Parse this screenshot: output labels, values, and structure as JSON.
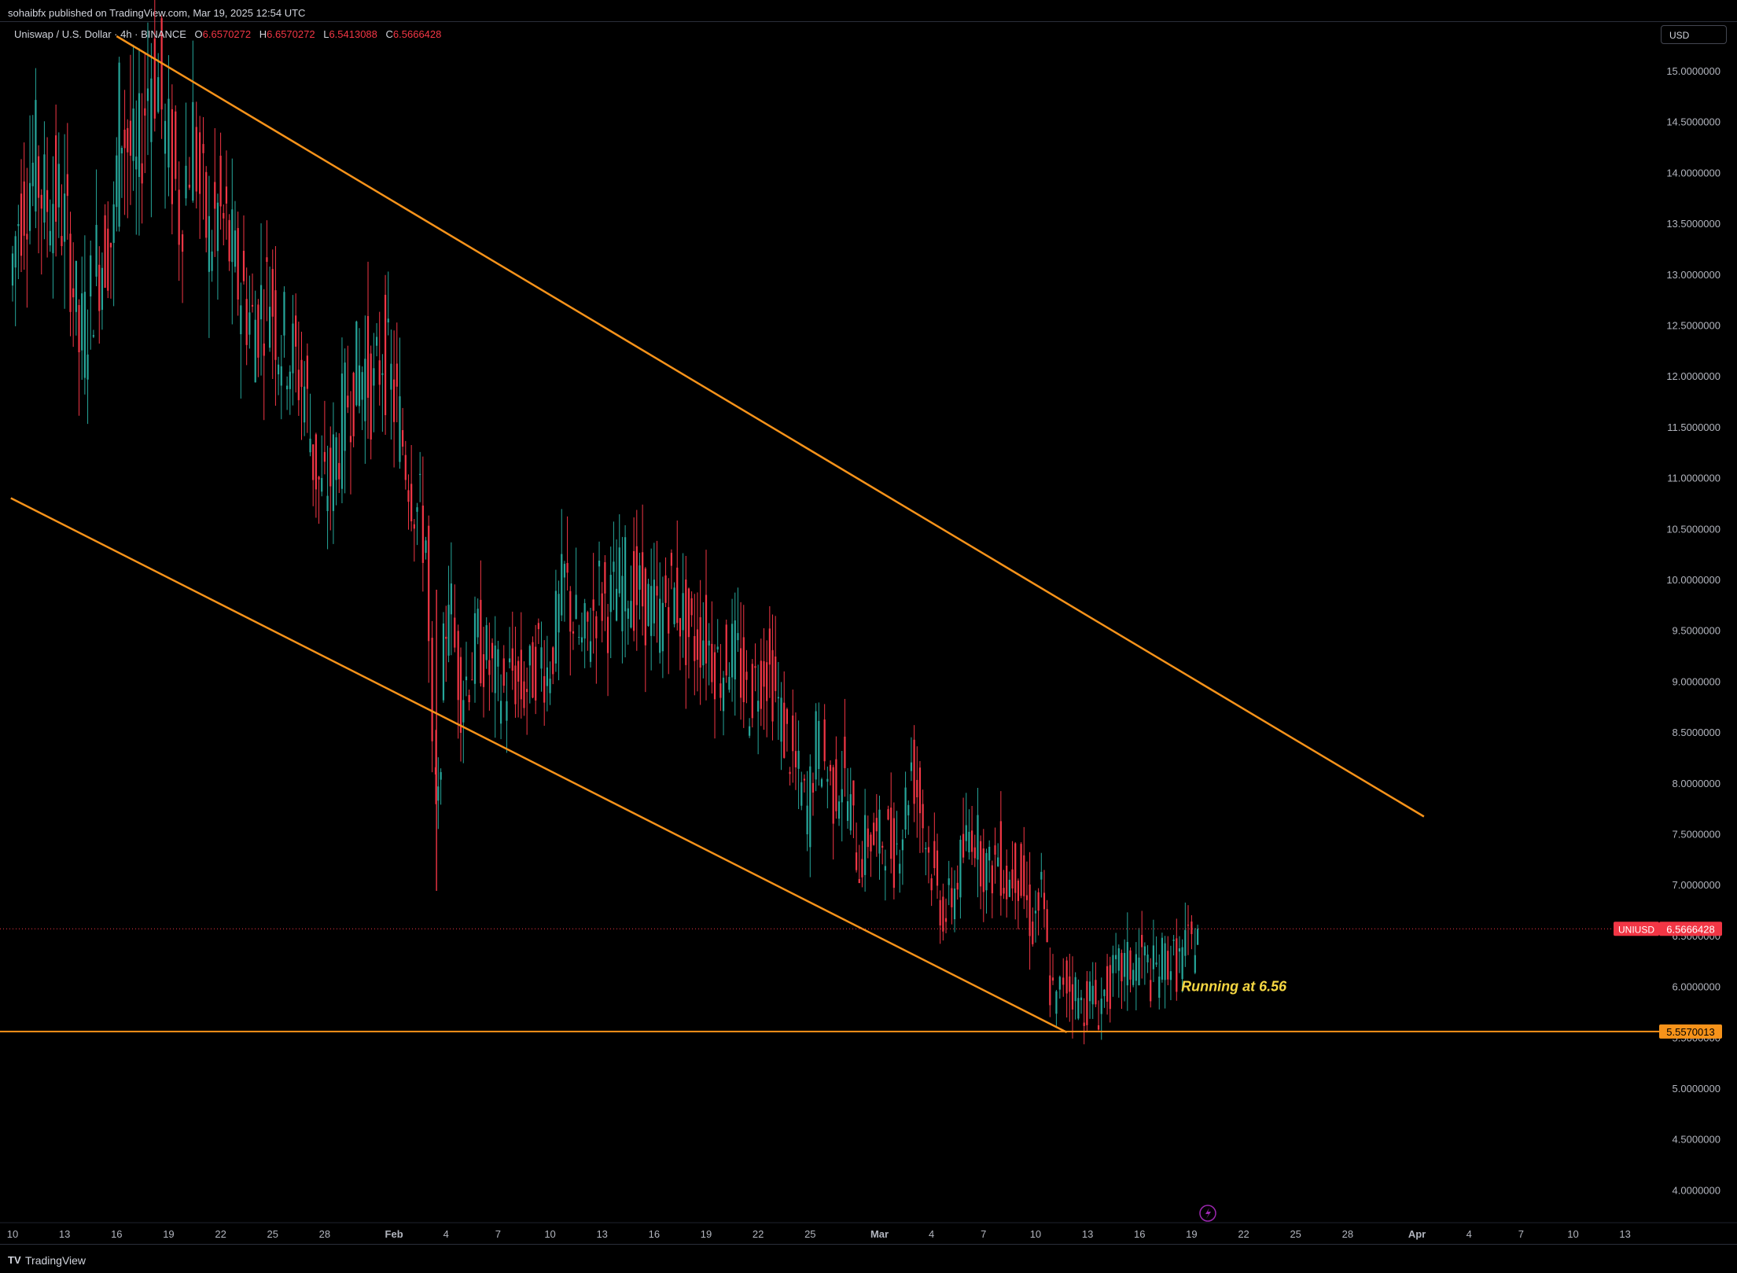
{
  "header": {
    "published": "sohaibfx published on TradingView.com, Mar 19, 2025 12:54 UTC"
  },
  "legend": {
    "symbol": "Uniswap / U.S. Dollar · 4h · BINANCE",
    "o_label": "O",
    "o": "6.6570272",
    "h_label": "H",
    "h": "6.6570272",
    "l_label": "L",
    "l": "6.5413088",
    "c_label": "C",
    "c": "6.5666428"
  },
  "currency_button": "USD",
  "footer": {
    "brand": "TradingView",
    "logo": "TV"
  },
  "colors": {
    "up": "#26a69a",
    "down": "#f23645",
    "trendline": "#f7931a",
    "annotation": "#f5d742",
    "price_label": "#f23645",
    "level_label": "#f7931a"
  },
  "chart_data": {
    "type": "candlestick",
    "interval": "4h",
    "y_scale": "linear",
    "ylim": [
      3.8,
      15.35
    ],
    "y_ticks": [
      "15.0000000",
      "14.5000000",
      "14.0000000",
      "13.5000000",
      "13.0000000",
      "12.5000000",
      "12.0000000",
      "11.5000000",
      "11.0000000",
      "10.5000000",
      "10.0000000",
      "9.5000000",
      "9.0000000",
      "8.5000000",
      "8.0000000",
      "7.5000000",
      "7.0000000",
      "6.5000000",
      "6.0000000",
      "5.5000000",
      "5.0000000",
      "4.5000000",
      "4.0000000"
    ],
    "y_tick_values": [
      15,
      14.5,
      14,
      13.5,
      13,
      12.5,
      12,
      11.5,
      11,
      10.5,
      10,
      9.5,
      9,
      8.5,
      8,
      7.5,
      7,
      6.5,
      6,
      5.5,
      5,
      4.5,
      4
    ],
    "x_range_days": [
      0,
      93
    ],
    "x_ticks": [
      {
        "label": "10",
        "day": 0
      },
      {
        "label": "13",
        "day": 3
      },
      {
        "label": "16",
        "day": 6
      },
      {
        "label": "19",
        "day": 9
      },
      {
        "label": "22",
        "day": 12
      },
      {
        "label": "25",
        "day": 15
      },
      {
        "label": "28",
        "day": 18
      },
      {
        "label": "Feb",
        "day": 22,
        "bold": true
      },
      {
        "label": "4",
        "day": 25
      },
      {
        "label": "7",
        "day": 28
      },
      {
        "label": "10",
        "day": 31
      },
      {
        "label": "13",
        "day": 34
      },
      {
        "label": "16",
        "day": 37
      },
      {
        "label": "19",
        "day": 40
      },
      {
        "label": "22",
        "day": 43
      },
      {
        "label": "25",
        "day": 46
      },
      {
        "label": "Mar",
        "day": 50,
        "bold": true
      },
      {
        "label": "4",
        "day": 53
      },
      {
        "label": "7",
        "day": 56
      },
      {
        "label": "10",
        "day": 59
      },
      {
        "label": "13",
        "day": 62
      },
      {
        "label": "16",
        "day": 65
      },
      {
        "label": "19",
        "day": 68
      },
      {
        "label": "22",
        "day": 71
      },
      {
        "label": "25",
        "day": 74
      },
      {
        "label": "28",
        "day": 77
      },
      {
        "label": "Apr",
        "day": 81,
        "bold": true
      },
      {
        "label": "4",
        "day": 84
      },
      {
        "label": "7",
        "day": 87
      },
      {
        "label": "10",
        "day": 90
      },
      {
        "label": "13",
        "day": 93
      }
    ],
    "price_path": [
      [
        0,
        12.9
      ],
      [
        0.5,
        13.6
      ],
      [
        1,
        13.9
      ],
      [
        1.5,
        14.1
      ],
      [
        2,
        13.7
      ],
      [
        2.5,
        13.8
      ],
      [
        3,
        13.6
      ],
      [
        3.5,
        13.2
      ],
      [
        4,
        12.3
      ],
      [
        4.5,
        12.6
      ],
      [
        5,
        13.1
      ],
      [
        5.5,
        13.3
      ],
      [
        6,
        13.4
      ],
      [
        6.3,
        14.6
      ],
      [
        6.8,
        14.3
      ],
      [
        7.3,
        13.9
      ],
      [
        7.8,
        14.7
      ],
      [
        8.2,
        15.1
      ],
      [
        8.6,
        14.9
      ],
      [
        9,
        14.3
      ],
      [
        9.4,
        14.1
      ],
      [
        9.8,
        13.6
      ],
      [
        10.2,
        14.0
      ],
      [
        10.6,
        14.4
      ],
      [
        11,
        13.8
      ],
      [
        11.5,
        13.3
      ],
      [
        12,
        13.6
      ],
      [
        12.5,
        13.4
      ],
      [
        13,
        13.0
      ],
      [
        13.5,
        12.8
      ],
      [
        14,
        12.5
      ],
      [
        14.5,
        12.7
      ],
      [
        15,
        12.9
      ],
      [
        15.5,
        12.4
      ],
      [
        16,
        12.3
      ],
      [
        16.5,
        12.1
      ],
      [
        17,
        11.9
      ],
      [
        17.5,
        11.2
      ],
      [
        18,
        10.8
      ],
      [
        18.5,
        11.0
      ],
      [
        19,
        11.4
      ],
      [
        19.5,
        11.8
      ],
      [
        20,
        12.0
      ],
      [
        20.5,
        12.1
      ],
      [
        21,
        11.8
      ],
      [
        21.5,
        12.3
      ],
      [
        22,
        11.9
      ],
      [
        22.5,
        11.5
      ],
      [
        23,
        11.1
      ],
      [
        23.5,
        10.7
      ],
      [
        24,
        10.4
      ],
      [
        24.4,
        8.1
      ],
      [
        24.7,
        7.7
      ],
      [
        25,
        9.2
      ],
      [
        25.3,
        10.0
      ],
      [
        25.7,
        9.3
      ],
      [
        26,
        8.9
      ],
      [
        26.5,
        9.1
      ],
      [
        27,
        9.4
      ],
      [
        27.5,
        9.2
      ],
      [
        28,
        9.0
      ],
      [
        28.5,
        8.9
      ],
      [
        29,
        9.1
      ],
      [
        29.5,
        8.9
      ],
      [
        30,
        9.0
      ],
      [
        30.5,
        9.3
      ],
      [
        31,
        9.1
      ],
      [
        31.5,
        9.5
      ],
      [
        32,
        10.0
      ],
      [
        32.5,
        9.6
      ],
      [
        33,
        9.3
      ],
      [
        33.5,
        9.6
      ],
      [
        34,
        9.9
      ],
      [
        34.5,
        9.7
      ],
      [
        35,
        9.9
      ],
      [
        35.5,
        10.0
      ],
      [
        36,
        9.9
      ],
      [
        36.5,
        9.8
      ],
      [
        37,
        9.7
      ],
      [
        37.5,
        9.6
      ],
      [
        38,
        9.9
      ],
      [
        38.5,
        9.8
      ],
      [
        39,
        9.5
      ],
      [
        39.5,
        9.4
      ],
      [
        40,
        9.5
      ],
      [
        40.5,
        9.3
      ],
      [
        41,
        9.1
      ],
      [
        41.5,
        9.3
      ],
      [
        42,
        9.2
      ],
      [
        42.5,
        8.8
      ],
      [
        43,
        9.0
      ],
      [
        43.5,
        9.2
      ],
      [
        44,
        9.0
      ],
      [
        44.5,
        8.6
      ],
      [
        45,
        8.3
      ],
      [
        45.5,
        8.0
      ],
      [
        46,
        7.7
      ],
      [
        46.5,
        8.4
      ],
      [
        47,
        8.2
      ],
      [
        47.5,
        7.9
      ],
      [
        48,
        8.1
      ],
      [
        48.5,
        7.7
      ],
      [
        49,
        7.2
      ],
      [
        49.5,
        7.5
      ],
      [
        50,
        7.4
      ],
      [
        50.5,
        7.5
      ],
      [
        51,
        7.3
      ],
      [
        51.5,
        7.6
      ],
      [
        52,
        8.2
      ],
      [
        52.5,
        7.8
      ],
      [
        53,
        7.3
      ],
      [
        53.5,
        6.9
      ],
      [
        54,
        6.7
      ],
      [
        54.5,
        7.0
      ],
      [
        55,
        7.3
      ],
      [
        55.5,
        7.6
      ],
      [
        56,
        7.3
      ],
      [
        56.5,
        7.1
      ],
      [
        57,
        7.3
      ],
      [
        57.5,
        7.0
      ],
      [
        58,
        7.2
      ],
      [
        58.5,
        6.9
      ],
      [
        59,
        6.6
      ],
      [
        59.5,
        6.9
      ],
      [
        60,
        6.0
      ],
      [
        60.4,
        5.8
      ],
      [
        60.8,
        6.1
      ],
      [
        61.3,
        6.0
      ],
      [
        61.8,
        5.8
      ],
      [
        62.3,
        5.9
      ],
      [
        62.8,
        5.8
      ],
      [
        63.3,
        6.0
      ],
      [
        63.8,
        6.1
      ],
      [
        64.3,
        6.2
      ],
      [
        64.8,
        6.2
      ],
      [
        65.3,
        6.3
      ],
      [
        65.8,
        6.1
      ],
      [
        66.3,
        6.2
      ],
      [
        66.8,
        6.3
      ],
      [
        67.3,
        6.2
      ],
      [
        67.8,
        6.35
      ],
      [
        68.2,
        6.4
      ],
      [
        68.5,
        6.57
      ]
    ],
    "upper_trendline": [
      [
        6,
        15.34
      ],
      [
        81.4,
        7.67
      ]
    ],
    "lower_trendline": [
      [
        -0.1,
        10.8
      ],
      [
        60.8,
        5.55
      ]
    ],
    "support_level": 5.5570013,
    "support_label": "5.5570013",
    "current_price": 6.5666428,
    "current_price_label": "6.5666428",
    "current_symbol": "UNIUSD",
    "annotation": {
      "text": "Running at 6.56",
      "day": 67.4,
      "price": 6.0
    }
  }
}
